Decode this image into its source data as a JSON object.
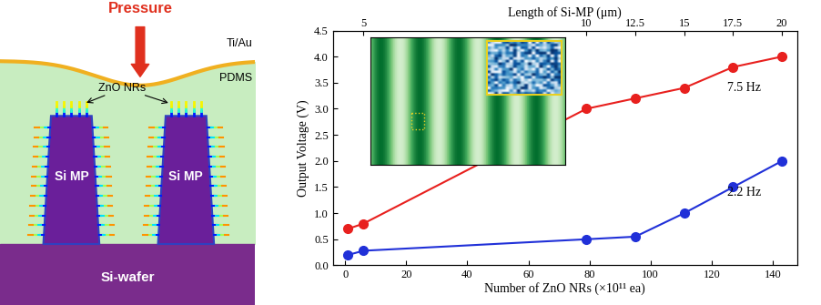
{
  "diagram": {
    "pressure_label": "Pressure",
    "electrode_label": "Ti/Au",
    "matrix_label": "PDMS",
    "nanorod_label": "ZnO NRs",
    "pillar_labels": [
      "Si MP",
      "Si MP"
    ],
    "substrate_label": "Si-wafer"
  },
  "chart_data": {
    "type": "line",
    "x_label": "Number of ZnO NRs (×10¹¹ ea)",
    "x2_label": "Length of Si-MP (μm)",
    "y_label": "Output Voltage (V)",
    "x": [
      1,
      6,
      79,
      95,
      111,
      127,
      143
    ],
    "series": [
      {
        "name": "7.5 Hz",
        "color": "#e8201e",
        "marker": "o",
        "values": [
          0.7,
          0.8,
          3.0,
          3.2,
          3.4,
          3.8,
          4.0
        ]
      },
      {
        "name": "2.2 Hz",
        "color": "#2030d8",
        "marker": "o",
        "values": [
          0.2,
          0.28,
          0.5,
          0.55,
          1.0,
          1.5,
          2.0
        ]
      }
    ],
    "xlim": [
      -4,
      148
    ],
    "xticks": [
      0,
      20,
      40,
      60,
      80,
      100,
      120,
      140
    ],
    "x2ticks": [
      {
        "value": 6,
        "label": "5"
      },
      {
        "value": 79,
        "label": "10"
      },
      {
        "value": 95,
        "label": "12.5"
      },
      {
        "value": 111,
        "label": "15"
      },
      {
        "value": 127,
        "label": "17.5"
      },
      {
        "value": 143,
        "label": "20"
      }
    ],
    "ylim": [
      0.0,
      4.5
    ],
    "yticks": [
      0.0,
      0.5,
      1.0,
      1.5,
      2.0,
      2.5,
      3.0,
      3.5,
      4.0,
      4.5
    ],
    "grid": false
  }
}
